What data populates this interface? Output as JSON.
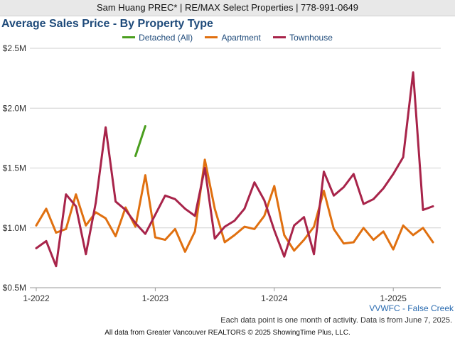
{
  "header": {
    "banner": "Sam Huang PREC* | RE/MAX Select Properties | 778-991-0649"
  },
  "chart_data": {
    "type": "line",
    "title": "Average Sales Price - By Property Type",
    "xlabel": "",
    "ylabel": "",
    "ylim": [
      500000,
      2500000
    ],
    "y_ticks": [
      "$0.5M",
      "$1.0M",
      "$1.5M",
      "$2.0M",
      "$2.5M"
    ],
    "x_ticks": [
      "1-2022",
      "1-2023",
      "1-2024",
      "1-2025"
    ],
    "grid": "horizontal",
    "legend_position": "top",
    "x_start": "2022-01",
    "series": [
      {
        "name": "Detached (All)",
        "color": "#4a9e1e",
        "start": "2022-11",
        "values": [
          1600000,
          1850000
        ]
      },
      {
        "name": "Apartment",
        "color": "#e07010",
        "start": "2022-01",
        "values": [
          1020000,
          1160000,
          960000,
          990000,
          1280000,
          1020000,
          1130000,
          1080000,
          930000,
          1170000,
          1010000,
          1440000,
          920000,
          900000,
          990000,
          800000,
          970000,
          1570000,
          1160000,
          880000,
          940000,
          1010000,
          990000,
          1100000,
          1350000,
          940000,
          810000,
          900000,
          1010000,
          1310000,
          990000,
          870000,
          880000,
          1000000,
          900000,
          970000,
          820000,
          1020000,
          940000,
          1000000,
          880000
        ]
      },
      {
        "name": "Townhouse",
        "color": "#a8244a",
        "start": "2022-01",
        "values": [
          830000,
          890000,
          680000,
          1280000,
          1180000,
          780000,
          1210000,
          1840000,
          1220000,
          1150000,
          1040000,
          950000,
          1110000,
          1270000,
          1240000,
          1160000,
          1100000,
          1500000,
          910000,
          1010000,
          1060000,
          1160000,
          1380000,
          1230000,
          980000,
          760000,
          1020000,
          1090000,
          780000,
          1470000,
          1270000,
          1340000,
          1450000,
          1200000,
          1240000,
          1330000,
          1450000,
          1590000,
          2300000,
          1150000,
          1180000
        ]
      }
    ]
  },
  "region": "VVWFC - False Creek",
  "note": "Each data point is one month of activity. Data is from June 7, 2025.",
  "footer": "All data from Greater Vancouver REALTORS © 2025 ShowingTime Plus, LLC."
}
